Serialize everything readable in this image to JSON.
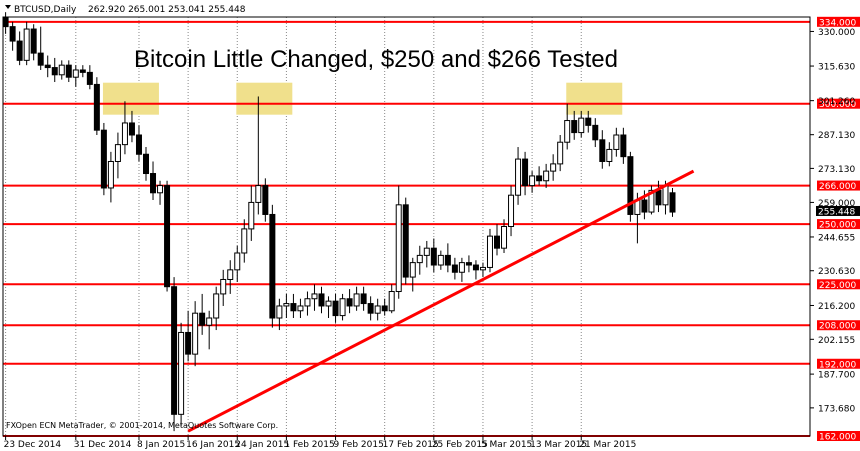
{
  "header": {
    "symbol": "BTCUSD,Daily",
    "ohlc": "262.920 265.001 253.041 255.448"
  },
  "copyright": "FXOpen ECN MetaTrader, © 2001-2014, MetaQuotes Software Corp.",
  "chart_data": {
    "type": "candlestick",
    "title": "Bitcoin Little Changed, $250 and $266 Tested",
    "y_range": [
      162.0,
      336.0
    ],
    "y_ticks": [
      "330.000",
      "315.630",
      "301.260",
      "287.130",
      "273.130",
      "259.000",
      "244.655",
      "230.630",
      "216.200",
      "202.155",
      "187.700",
      "173.680"
    ],
    "current_price": "255.448",
    "x_tick_labels": [
      "23 Dec 2014",
      "31 Dec 2014",
      "8 Jan 2015",
      "16 Jan 2015",
      "24 Jan 2015",
      "1 Feb 2015",
      "9 Feb 2015",
      "17 Feb 2015",
      "25 Feb 2015",
      "5 Mar 2015",
      "13 Mar 2015",
      "21 Mar 2015"
    ],
    "horizontal_levels": [
      "334.000",
      "300.000",
      "266.000",
      "250.000",
      "225.000",
      "208.000",
      "192.000",
      "162.000"
    ],
    "trendline": {
      "start": [
        "16 Jan 2015",
        164
      ],
      "end": [
        "24 Mar 2015",
        272
      ]
    },
    "highlighted_tests_near": 300,
    "candles": [
      [
        0,
        336,
        338,
        329,
        332
      ],
      [
        1,
        332,
        334,
        322,
        326
      ],
      [
        2,
        326,
        330,
        316,
        318
      ],
      [
        3,
        318,
        334,
        316,
        331
      ],
      [
        4,
        331,
        333,
        318,
        321
      ],
      [
        5,
        321,
        332,
        314,
        316
      ],
      [
        6,
        316,
        320,
        311,
        315
      ],
      [
        7,
        315,
        319,
        309,
        312
      ],
      [
        8,
        312,
        318,
        310,
        316
      ],
      [
        9,
        316,
        318,
        309,
        311
      ],
      [
        10,
        311,
        316,
        307,
        314
      ],
      [
        11,
        314,
        316,
        311,
        313
      ],
      [
        12,
        313,
        316,
        306,
        308
      ],
      [
        13,
        308,
        311,
        287,
        289
      ],
      [
        14,
        289,
        292,
        262,
        265
      ],
      [
        15,
        265,
        280,
        259,
        276
      ],
      [
        16,
        276,
        288,
        269,
        283
      ],
      [
        17,
        283,
        301,
        279,
        292
      ],
      [
        18,
        292,
        297,
        284,
        287
      ],
      [
        19,
        287,
        291,
        276,
        279
      ],
      [
        20,
        279,
        282,
        268,
        271
      ],
      [
        21,
        271,
        276,
        260,
        263
      ],
      [
        22,
        263,
        268,
        258,
        266
      ],
      [
        23,
        266,
        268,
        222,
        224
      ],
      [
        24,
        224,
        228,
        164,
        171
      ],
      [
        25,
        171,
        209,
        166,
        205
      ],
      [
        26,
        205,
        214,
        193,
        196
      ],
      [
        27,
        196,
        218,
        191,
        213
      ],
      [
        28,
        213,
        221,
        204,
        208
      ],
      [
        29,
        208,
        214,
        198,
        211
      ],
      [
        30,
        211,
        224,
        206,
        221
      ],
      [
        31,
        221,
        231,
        216,
        227
      ],
      [
        32,
        227,
        235,
        221,
        231
      ],
      [
        33,
        231,
        241,
        226,
        238
      ],
      [
        34,
        238,
        252,
        234,
        248
      ],
      [
        35,
        248,
        266,
        243,
        259
      ],
      [
        36,
        259,
        303,
        254,
        266
      ],
      [
        37,
        266,
        269,
        251,
        254
      ],
      [
        38,
        254,
        258,
        207,
        211
      ],
      [
        39,
        211,
        219,
        206,
        216
      ],
      [
        40,
        216,
        221,
        211,
        217
      ],
      [
        41,
        217,
        221,
        211,
        214
      ],
      [
        42,
        214,
        219,
        211,
        216
      ],
      [
        43,
        216,
        222,
        212,
        219
      ],
      [
        44,
        219,
        225,
        214,
        221
      ],
      [
        45,
        221,
        224,
        213,
        216
      ],
      [
        46,
        216,
        220,
        211,
        218
      ],
      [
        47,
        218,
        221,
        209,
        212
      ],
      [
        48,
        212,
        221,
        210,
        219
      ],
      [
        49,
        219,
        223,
        213,
        216
      ],
      [
        50,
        216,
        224,
        214,
        221
      ],
      [
        51,
        221,
        224,
        214,
        217
      ],
      [
        52,
        217,
        220,
        210,
        213
      ],
      [
        53,
        213,
        219,
        210,
        216
      ],
      [
        54,
        216,
        219,
        212,
        214
      ],
      [
        55,
        214,
        225,
        213,
        222
      ],
      [
        56,
        222,
        266,
        219,
        258
      ],
      [
        57,
        258,
        261,
        225,
        228
      ],
      [
        58,
        228,
        236,
        222,
        234
      ],
      [
        59,
        234,
        241,
        229,
        237
      ],
      [
        60,
        237,
        243,
        232,
        240
      ],
      [
        61,
        240,
        244,
        230,
        233
      ],
      [
        62,
        233,
        239,
        231,
        237
      ],
      [
        63,
        237,
        242,
        230,
        233
      ],
      [
        64,
        233,
        236,
        227,
        230
      ],
      [
        65,
        230,
        236,
        226,
        234
      ],
      [
        66,
        234,
        237,
        230,
        233
      ],
      [
        67,
        233,
        235,
        227,
        231
      ],
      [
        68,
        231,
        234,
        228,
        232
      ],
      [
        69,
        232,
        248,
        230,
        245
      ],
      [
        70,
        245,
        250,
        237,
        240
      ],
      [
        71,
        240,
        252,
        238,
        249
      ],
      [
        72,
        249,
        266,
        245,
        262
      ],
      [
        73,
        262,
        282,
        258,
        277
      ],
      [
        74,
        277,
        280,
        262,
        266
      ],
      [
        75,
        266,
        272,
        263,
        270
      ],
      [
        76,
        270,
        274,
        266,
        268
      ],
      [
        77,
        268,
        275,
        265,
        272
      ],
      [
        78,
        272,
        279,
        268,
        275
      ],
      [
        79,
        275,
        287,
        272,
        284
      ],
      [
        80,
        284,
        300,
        281,
        293
      ],
      [
        81,
        293,
        297,
        285,
        288
      ],
      [
        82,
        288,
        297,
        286,
        294
      ],
      [
        83,
        294,
        297,
        288,
        291
      ],
      [
        84,
        291,
        294,
        282,
        285
      ],
      [
        85,
        285,
        289,
        273,
        276
      ],
      [
        86,
        276,
        284,
        274,
        281
      ],
      [
        87,
        281,
        290,
        278,
        287
      ],
      [
        88,
        287,
        290,
        275,
        278
      ],
      [
        89,
        278,
        280,
        251,
        254
      ],
      [
        90,
        254,
        263,
        242,
        260
      ],
      [
        91,
        260,
        264,
        252,
        255
      ],
      [
        92,
        255,
        266,
        254,
        264
      ],
      [
        93,
        264,
        268,
        255,
        258
      ],
      [
        94,
        258,
        268,
        254,
        266
      ],
      [
        95,
        263,
        265,
        253,
        255
      ]
    ]
  },
  "colors": {
    "level_line": "#ff0000",
    "level_label_bg": "#ff0000",
    "trendline": "#ff0000",
    "highlight": "#f0e08c",
    "bull_body": "#ffffff",
    "bear_body": "#000000",
    "candle_outline": "#000000",
    "grid": "#888888"
  }
}
